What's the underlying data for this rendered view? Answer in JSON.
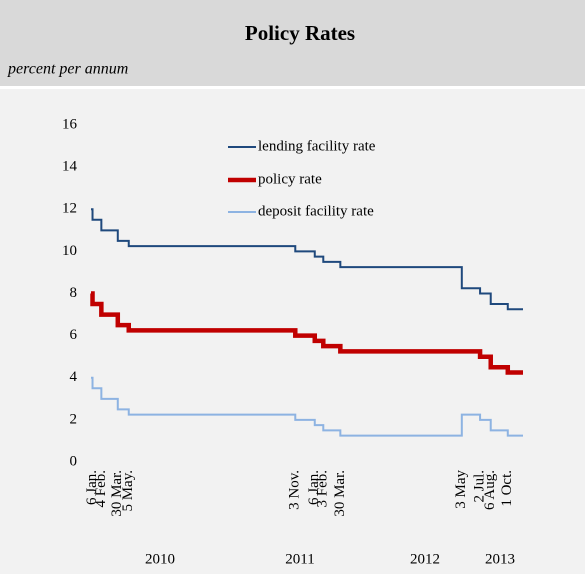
{
  "chart_data": {
    "type": "step-line",
    "title": "Policy Rates",
    "subtitle": "percent per annum",
    "x": [
      "2010-01-01",
      "2010-01-06",
      "2010-02-04",
      "2010-03-30",
      "2010-05-05",
      "2011-11-03",
      "2012-01-06",
      "2012-02-03",
      "2012-03-30",
      "2013-05-03",
      "2013-07-02",
      "2013-08-06",
      "2013-10-01"
    ],
    "xlim": [
      "2010-01-01",
      "2013-11-20"
    ],
    "xticks": [
      {
        "value": "2010-01-06",
        "label": "6 Jan."
      },
      {
        "value": "2010-02-04",
        "label": "4 Feb."
      },
      {
        "value": "2010-03-30",
        "label": "30 Mar."
      },
      {
        "value": "2010-05-05",
        "label": "5 May."
      },
      {
        "value": "2011-11-03",
        "label": "3 Nov."
      },
      {
        "value": "2012-01-06",
        "label": "6 Jan."
      },
      {
        "value": "2012-02-03",
        "label": "3 Feb."
      },
      {
        "value": "2012-03-30",
        "label": "30 Mar."
      },
      {
        "value": "2013-05-03",
        "label": "3 May"
      },
      {
        "value": "2013-07-02",
        "label": "2 Jul."
      },
      {
        "value": "2013-08-06",
        "label": "6 Aug."
      },
      {
        "value": "2013-10-01",
        "label": "1 Oct."
      }
    ],
    "x_group_labels": [
      "2010",
      "2011",
      "2012",
      "2013"
    ],
    "ylim": [
      0,
      16
    ],
    "yticks": [
      0,
      2,
      4,
      6,
      8,
      10,
      12,
      14,
      16
    ],
    "series": [
      {
        "name": "lending facility rate",
        "color": "#1f497d",
        "values": [
          12,
          11.5,
          11,
          10.5,
          10.25,
          10,
          9.75,
          9.5,
          9.25,
          8.25,
          8,
          7.5,
          7.25
        ]
      },
      {
        "name": "policy rate",
        "color": "#c00000",
        "values": [
          8,
          7.5,
          7,
          6.5,
          6.25,
          6,
          5.75,
          5.5,
          5.25,
          5.25,
          5,
          4.5,
          4.25
        ]
      },
      {
        "name": "deposit facility rate",
        "color": "#8db3e2",
        "values": [
          4,
          3.5,
          3,
          2.5,
          2.25,
          2,
          1.75,
          1.5,
          1.25,
          2.25,
          2,
          1.5,
          1.25
        ]
      }
    ]
  }
}
